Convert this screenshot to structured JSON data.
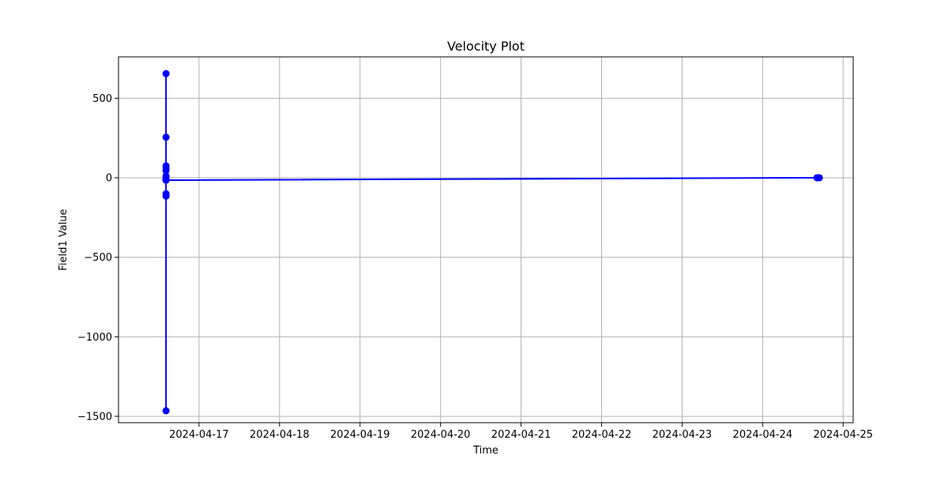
{
  "chart_data": {
    "type": "line",
    "title": "Velocity Plot",
    "xlabel": "Time",
    "ylabel": "Field1 Value",
    "xlim": [
      "2024-04-16T00:00",
      "2024-04-25T03:00"
    ],
    "ylim": [
      -1540,
      760
    ],
    "x_ticks": [
      "2024-04-17",
      "2024-04-18",
      "2024-04-19",
      "2024-04-20",
      "2024-04-21",
      "2024-04-22",
      "2024-04-23",
      "2024-04-24",
      "2024-04-25"
    ],
    "y_ticks": [
      500,
      0,
      -500,
      -1000,
      -1500
    ],
    "y_tick_labels": [
      "500",
      "0",
      "−500",
      "−1000",
      "−1500"
    ],
    "grid": true,
    "series": [
      {
        "color": "#0000ff",
        "marker": "circle",
        "points": [
          {
            "x": "2024-04-16T14:10",
            "y": 0
          },
          {
            "x": "2024-04-16T14:10",
            "y": 655
          },
          {
            "x": "2024-04-16T14:10",
            "y": 255
          },
          {
            "x": "2024-04-16T14:10",
            "y": 75
          },
          {
            "x": "2024-04-16T14:10",
            "y": 60
          },
          {
            "x": "2024-04-16T14:10",
            "y": 45
          },
          {
            "x": "2024-04-16T14:10",
            "y": 10
          },
          {
            "x": "2024-04-16T14:10",
            "y": -5
          },
          {
            "x": "2024-04-16T14:10",
            "y": -15
          },
          {
            "x": "2024-04-16T14:10",
            "y": -100
          },
          {
            "x": "2024-04-16T14:10",
            "y": -115
          },
          {
            "x": "2024-04-16T14:10",
            "y": -1465
          },
          {
            "x": "2024-04-16T14:10",
            "y": -15
          },
          {
            "x": "2024-04-24T16:10",
            "y": 0
          },
          {
            "x": "2024-04-24T16:25",
            "y": 0
          },
          {
            "x": "2024-04-24T16:40",
            "y": 0
          },
          {
            "x": "2024-04-24T16:55",
            "y": 0
          }
        ]
      }
    ]
  }
}
